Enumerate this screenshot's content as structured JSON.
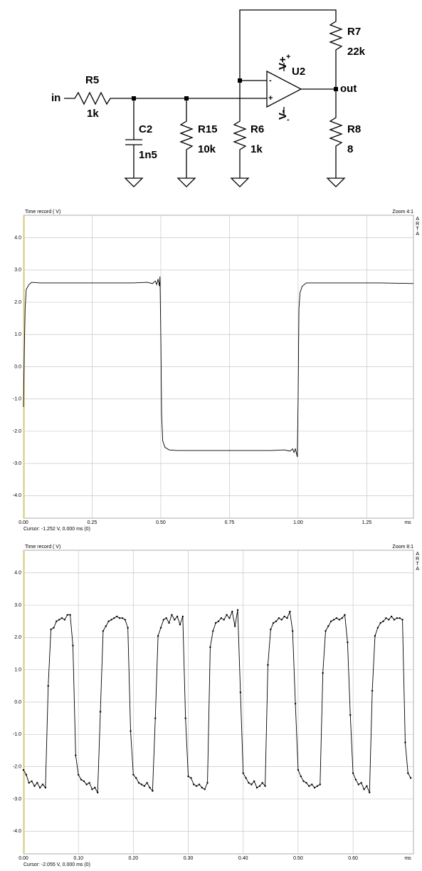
{
  "schematic": {
    "input": "in",
    "output": "out",
    "r5": {
      "name": "R5",
      "value": "1k"
    },
    "c2": {
      "name": "C2",
      "value": "1n5"
    },
    "r15": {
      "name": "R15",
      "value": "10k"
    },
    "r6": {
      "name": "R6",
      "value": "1k"
    },
    "r7": {
      "name": "R7",
      "value": "22k"
    },
    "r8": {
      "name": "R8",
      "value": "8"
    },
    "opamp": {
      "name": "U2",
      "vplus": "V+",
      "vminus": "V-",
      "inv": "-",
      "noninv": "+",
      "supply_plus": "+",
      "supply_minus": "-"
    }
  },
  "chart_data": [
    {
      "type": "line",
      "title": "Time record ( V)",
      "zoom": "Zoom 4:1",
      "brand": "ARTA",
      "x_unit": "ms",
      "cursor": "Cursor:  -1.252 V,   0.000 ms  (0)",
      "color": "#000000",
      "grid": true,
      "markers": false,
      "xlim": [
        0,
        1.42
      ],
      "ylim": [
        -4.7,
        4.7
      ],
      "xticks": [
        {
          "value": 0,
          "label": "0.00"
        },
        0.25,
        {
          "value": 0.5,
          "label": "0.50"
        },
        0.75,
        {
          "value": 1,
          "label": "1.00"
        },
        1.25
      ],
      "yticks": [
        {
          "value": 4,
          "label": "4.0"
        },
        {
          "value": 3,
          "label": "3.0"
        },
        {
          "value": 2,
          "label": "2.0"
        },
        {
          "value": 1,
          "label": "1.0"
        },
        {
          "value": 0,
          "label": "0.0"
        },
        {
          "value": -1,
          "label": "-1.0"
        },
        {
          "value": -2,
          "label": "-2.0"
        },
        {
          "value": -3,
          "label": "-3.0"
        },
        {
          "value": -4,
          "label": "-4.0"
        }
      ],
      "x": [
        0,
        0.003,
        0.006,
        0.01,
        0.02,
        0.03,
        0.06,
        0.1,
        0.2,
        0.3,
        0.4,
        0.45,
        0.47,
        0.48,
        0.485,
        0.49,
        0.495,
        0.497,
        0.5,
        0.503,
        0.507,
        0.515,
        0.53,
        0.56,
        0.7,
        0.9,
        0.95,
        0.97,
        0.98,
        0.985,
        0.99,
        0.995,
        0.997,
        1.0,
        1.003,
        1.007,
        1.015,
        1.03,
        1.1,
        1.3,
        1.42
      ],
      "values": [
        -1.25,
        0.5,
        1.8,
        2.4,
        2.55,
        2.62,
        2.6,
        2.6,
        2.6,
        2.6,
        2.6,
        2.62,
        2.58,
        2.66,
        2.55,
        2.72,
        2.5,
        2.8,
        1.0,
        -1.5,
        -2.3,
        -2.5,
        -2.58,
        -2.6,
        -2.6,
        -2.6,
        -2.58,
        -2.62,
        -2.55,
        -2.66,
        -2.55,
        -2.72,
        -2.8,
        -1.0,
        1.8,
        2.3,
        2.5,
        2.6,
        2.6,
        2.6,
        2.58
      ]
    },
    {
      "type": "line",
      "title": "Time record ( V)",
      "zoom": "Zoom 8:1",
      "brand": "ARTA",
      "x_unit": "ms",
      "cursor": "Cursor:  -2.055 V,   0.000 ms  (0)",
      "color": "#000000",
      "grid": true,
      "markers": true,
      "xlim": [
        0,
        0.71
      ],
      "ylim": [
        -4.7,
        4.7
      ],
      "xticks": [
        {
          "value": 0,
          "label": "0.00"
        },
        {
          "value": 0.1,
          "label": "0.10"
        },
        {
          "value": 0.2,
          "label": "0.20"
        },
        {
          "value": 0.3,
          "label": "0.30"
        },
        {
          "value": 0.4,
          "label": "0.40"
        },
        {
          "value": 0.5,
          "label": "0.50"
        },
        {
          "value": 0.6,
          "label": "0.60"
        }
      ],
      "yticks": [
        {
          "value": 4,
          "label": "4.0"
        },
        {
          "value": 3,
          "label": "3.0"
        },
        {
          "value": 2,
          "label": "2.0"
        },
        {
          "value": 1,
          "label": "1.0"
        },
        {
          "value": 0,
          "label": "0.0"
        },
        {
          "value": -1,
          "label": "-1.0"
        },
        {
          "value": -2,
          "label": "-2.0"
        },
        {
          "value": -3,
          "label": "-3.0"
        },
        {
          "value": -4,
          "label": "-4.0"
        }
      ],
      "x": [
        0,
        0.005,
        0.01,
        0.015,
        0.02,
        0.025,
        0.03,
        0.035,
        0.04,
        0.045,
        0.05,
        0.055,
        0.06,
        0.065,
        0.07,
        0.075,
        0.08,
        0.085,
        0.09,
        0.095,
        0.1,
        0.105,
        0.11,
        0.115,
        0.12,
        0.125,
        0.13,
        0.135,
        0.14,
        0.145,
        0.15,
        0.155,
        0.16,
        0.165,
        0.17,
        0.175,
        0.18,
        0.185,
        0.19,
        0.195,
        0.2,
        0.205,
        0.21,
        0.215,
        0.22,
        0.225,
        0.23,
        0.235,
        0.24,
        0.245,
        0.25,
        0.255,
        0.26,
        0.265,
        0.27,
        0.275,
        0.28,
        0.285,
        0.29,
        0.295,
        0.3,
        0.305,
        0.31,
        0.315,
        0.32,
        0.325,
        0.33,
        0.335,
        0.34,
        0.345,
        0.35,
        0.355,
        0.36,
        0.365,
        0.37,
        0.375,
        0.38,
        0.385,
        0.39,
        0.395,
        0.4,
        0.405,
        0.41,
        0.415,
        0.42,
        0.425,
        0.43,
        0.435,
        0.44,
        0.445,
        0.45,
        0.455,
        0.46,
        0.465,
        0.47,
        0.475,
        0.48,
        0.485,
        0.49,
        0.495,
        0.5,
        0.505,
        0.51,
        0.515,
        0.52,
        0.525,
        0.53,
        0.535,
        0.54,
        0.545,
        0.55,
        0.555,
        0.56,
        0.565,
        0.57,
        0.575,
        0.58,
        0.585,
        0.59,
        0.595,
        0.6,
        0.605,
        0.61,
        0.615,
        0.62,
        0.625,
        0.63,
        0.635,
        0.64,
        0.645,
        0.65,
        0.655,
        0.66,
        0.665,
        0.67,
        0.675,
        0.68,
        0.685,
        0.69,
        0.695,
        0.7,
        0.705
      ],
      "values": [
        -2.1,
        -2.25,
        -2.5,
        -2.45,
        -2.6,
        -2.5,
        -2.65,
        -2.55,
        -2.65,
        0.5,
        2.25,
        2.3,
        2.5,
        2.55,
        2.6,
        2.55,
        2.7,
        2.7,
        1.75,
        -1.65,
        -2.25,
        -2.4,
        -2.45,
        -2.55,
        -2.5,
        -2.7,
        -2.65,
        -2.8,
        -0.3,
        2.2,
        2.35,
        2.5,
        2.55,
        2.6,
        2.65,
        2.6,
        2.6,
        2.55,
        2.3,
        -0.9,
        -2.25,
        -2.35,
        -2.5,
        -2.55,
        -2.6,
        -2.5,
        -2.65,
        -2.75,
        -0.5,
        2.05,
        2.3,
        2.55,
        2.6,
        2.45,
        2.7,
        2.55,
        2.65,
        2.4,
        2.65,
        -0.5,
        -2.3,
        -2.35,
        -2.55,
        -2.6,
        -2.55,
        -2.65,
        -2.7,
        -2.5,
        1.7,
        2.2,
        2.45,
        2.5,
        2.6,
        2.55,
        2.7,
        2.6,
        2.8,
        2.35,
        2.85,
        0.3,
        -2.2,
        -2.35,
        -2.5,
        -2.55,
        -2.45,
        -2.65,
        -2.6,
        -2.5,
        -2.6,
        1.15,
        2.25,
        2.45,
        2.5,
        2.6,
        2.55,
        2.65,
        2.6,
        2.8,
        2.2,
        -0.05,
        -2.1,
        -2.3,
        -2.45,
        -2.5,
        -2.6,
        -2.55,
        -2.65,
        -2.6,
        -2.55,
        0.9,
        2.2,
        2.35,
        2.5,
        2.55,
        2.6,
        2.55,
        2.6,
        2.7,
        1.85,
        -0.4,
        -2.2,
        -2.4,
        -2.55,
        -2.5,
        -2.7,
        -2.6,
        -2.8,
        0.35,
        2.05,
        2.3,
        2.45,
        2.5,
        2.6,
        2.55,
        2.65,
        2.55,
        2.6,
        2.6,
        2.55,
        -1.25,
        -2.2,
        -2.35
      ]
    }
  ]
}
